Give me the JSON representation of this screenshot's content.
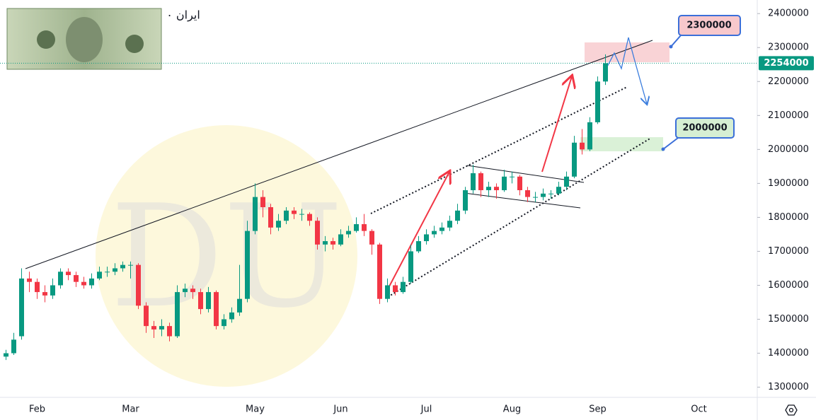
{
  "chart_data": {
    "type": "candlestick",
    "title": "ایران ۰",
    "categories": [
      null,
      null,
      null,
      null,
      "Feb",
      null,
      null,
      null,
      null,
      null,
      null,
      null,
      null,
      null,
      null,
      null,
      "Mar",
      null,
      null,
      null,
      null,
      null,
      null,
      null,
      null,
      null,
      null,
      null,
      null,
      null,
      null,
      null,
      "May",
      null,
      null,
      null,
      null,
      null,
      null,
      null,
      null,
      null,
      null,
      "Jun",
      null,
      null,
      null,
      null,
      null,
      null,
      null,
      null,
      null,
      null,
      "Jul",
      null,
      null,
      null,
      null,
      null,
      null,
      null,
      null,
      null,
      null,
      "Aug",
      null,
      null,
      null,
      null,
      null,
      null,
      null,
      null,
      null,
      null,
      "Sep",
      null,
      null,
      null,
      null,
      null,
      null,
      null,
      null,
      null,
      null,
      null,
      null,
      "Oct",
      null,
      null,
      null,
      null,
      null,
      null
    ],
    "open": [
      1390000,
      1400000,
      1450000,
      1620000,
      1610000,
      1580000,
      1570000,
      1600000,
      1640000,
      1630000,
      1610000,
      1600000,
      1620000,
      1640000,
      1640000,
      1650000,
      1660000,
      1660000,
      1540000,
      1480000,
      1470000,
      1480000,
      1450000,
      1580000,
      1590000,
      1580000,
      1530000,
      1580000,
      1480000,
      1500000,
      1520000,
      1560000,
      1760000,
      1860000,
      1830000,
      1770000,
      1790000,
      1820000,
      1810000,
      1810000,
      1790000,
      1720000,
      1730000,
      1720000,
      1750000,
      1760000,
      1780000,
      1760000,
      1720000,
      1560000,
      1600000,
      1580000,
      1610000,
      1700000,
      1730000,
      1750000,
      1760000,
      1770000,
      1790000,
      1820000,
      1880000,
      1930000,
      1880000,
      1890000,
      1880000,
      1920000,
      1920000,
      1880000,
      1860000,
      1860000,
      1870000,
      1870000,
      1890000,
      1920000,
      2020000,
      2000000,
      2080000,
      2200000,
      null,
      null,
      null,
      null,
      null,
      null,
      null,
      null,
      null,
      null,
      null,
      null,
      null,
      null,
      null,
      null,
      null,
      null
    ],
    "high": [
      1410000,
      1460000,
      1650000,
      1640000,
      1620000,
      1600000,
      1620000,
      1650000,
      1650000,
      1640000,
      1625000,
      1635000,
      1655000,
      1655000,
      1665000,
      1670000,
      1670000,
      1665000,
      1550000,
      1495000,
      1500000,
      1490000,
      1600000,
      1605000,
      1600000,
      1590000,
      1595000,
      1585000,
      1515000,
      1535000,
      1660000,
      1790000,
      1900000,
      1880000,
      1840000,
      1810000,
      1830000,
      1830000,
      1825000,
      1815000,
      1800000,
      1745000,
      1740000,
      1765000,
      1775000,
      1800000,
      1810000,
      1765000,
      1725000,
      1620000,
      1610000,
      1625000,
      1720000,
      1745000,
      1765000,
      1775000,
      1785000,
      1805000,
      1840000,
      1890000,
      1955000,
      1935000,
      1905000,
      1900000,
      1940000,
      1935000,
      1925000,
      1890000,
      1875000,
      1885000,
      1880000,
      1905000,
      1935000,
      2040000,
      2060000,
      2095000,
      2215000,
      2280000,
      null,
      null,
      null,
      null,
      null,
      null,
      null,
      null,
      null,
      null,
      null,
      null,
      null,
      null,
      null,
      null,
      null,
      null
    ],
    "low": [
      1380000,
      1395000,
      1440000,
      1580000,
      1560000,
      1550000,
      1560000,
      1590000,
      1615000,
      1595000,
      1590000,
      1590000,
      1615000,
      1625000,
      1630000,
      1640000,
      1620000,
      1530000,
      1460000,
      1445000,
      1450000,
      1435000,
      1445000,
      1565000,
      1560000,
      1515000,
      1520000,
      1470000,
      1470000,
      1490000,
      1510000,
      1550000,
      1750000,
      1800000,
      1750000,
      1760000,
      1780000,
      1795000,
      1790000,
      1775000,
      1705000,
      1700000,
      1705000,
      1715000,
      1740000,
      1755000,
      1745000,
      1690000,
      1545000,
      1550000,
      1570000,
      1575000,
      1605000,
      1695000,
      1720000,
      1740000,
      1750000,
      1760000,
      1780000,
      1810000,
      1870000,
      1860000,
      1860000,
      1855000,
      1875000,
      1900000,
      1865000,
      1845000,
      1845000,
      1850000,
      1855000,
      1865000,
      1880000,
      1915000,
      1985000,
      1995000,
      2075000,
      2190000,
      null,
      null,
      null,
      null,
      null,
      null,
      null,
      null,
      null,
      null,
      null,
      null,
      null,
      null,
      null,
      null,
      null,
      null
    ],
    "close": [
      1400000,
      1440000,
      1620000,
      1610000,
      1580000,
      1570000,
      1600000,
      1640000,
      1630000,
      1610000,
      1600000,
      1620000,
      1640000,
      1640000,
      1650000,
      1660000,
      1660000,
      1540000,
      1480000,
      1470000,
      1480000,
      1450000,
      1580000,
      1590000,
      1580000,
      1530000,
      1580000,
      1480000,
      1500000,
      1520000,
      1560000,
      1760000,
      1860000,
      1830000,
      1770000,
      1790000,
      1820000,
      1810000,
      1810000,
      1790000,
      1720000,
      1730000,
      1720000,
      1750000,
      1760000,
      1780000,
      1760000,
      1720000,
      1560000,
      1600000,
      1580000,
      1610000,
      1700000,
      1730000,
      1750000,
      1760000,
      1770000,
      1790000,
      1820000,
      1880000,
      1930000,
      1880000,
      1890000,
      1880000,
      1920000,
      1920000,
      1880000,
      1860000,
      1860000,
      1870000,
      1870000,
      1890000,
      1920000,
      2020000,
      2000000,
      2080000,
      2200000,
      2254000,
      null,
      null,
      null,
      null,
      null,
      null,
      null,
      null,
      null,
      null,
      null,
      null,
      null,
      null,
      null,
      null,
      null,
      null
    ],
    "up_color": "#089981",
    "down_color": "#f23645",
    "ylim": [
      1270000,
      2440000
    ],
    "yticks": [
      1300000,
      1400000,
      1500000,
      1600000,
      1700000,
      1800000,
      1900000,
      2000000,
      2100000,
      2200000,
      2300000,
      2400000
    ],
    "target_levels": [
      2300000,
      2000000
    ]
  }
}
